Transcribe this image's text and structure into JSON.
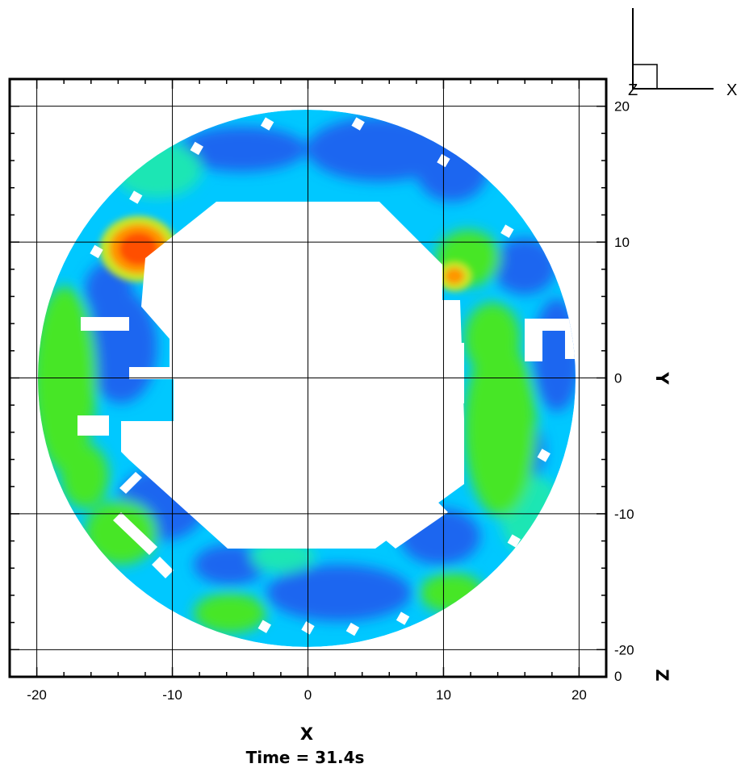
{
  "chart_data": {
    "type": "heatmap",
    "title": "",
    "xlabel": "X",
    "ylabel": "Y",
    "zlabel": "Z",
    "xlim": [
      -22,
      22
    ],
    "ylim": [
      -22,
      22
    ],
    "x_ticks": [
      -20,
      -10,
      0,
      10,
      20
    ],
    "y_ticks": [
      -20,
      -10,
      0,
      10,
      20
    ],
    "x_tick_labels": [
      "-20",
      "-10",
      "0",
      "10",
      "20"
    ],
    "y_tick_labels": [
      "-20",
      "-10",
      "0",
      "10",
      "20"
    ],
    "z_tick_label": "0",
    "grid": true,
    "domain": {
      "shape": "circle",
      "center": [
        0,
        0
      ],
      "radius": 20
    },
    "hot_spots": [
      {
        "x": -12.5,
        "y": 9.5,
        "level": "high"
      },
      {
        "x": 10.8,
        "y": 7.5,
        "level": "medium"
      }
    ],
    "annotation": "Time = 31.4s",
    "axis_triad": {
      "x_label": "X",
      "z_label": "Z"
    },
    "colors": {
      "low": "#1a66f0",
      "low_mid": "#00c8ff",
      "mid": "#1ee6b4",
      "mid_high": "#46e628",
      "high_mid": "#c8e628",
      "high": "#ff9600",
      "max": "#ff5000",
      "obstacle": "#ffffff"
    }
  }
}
